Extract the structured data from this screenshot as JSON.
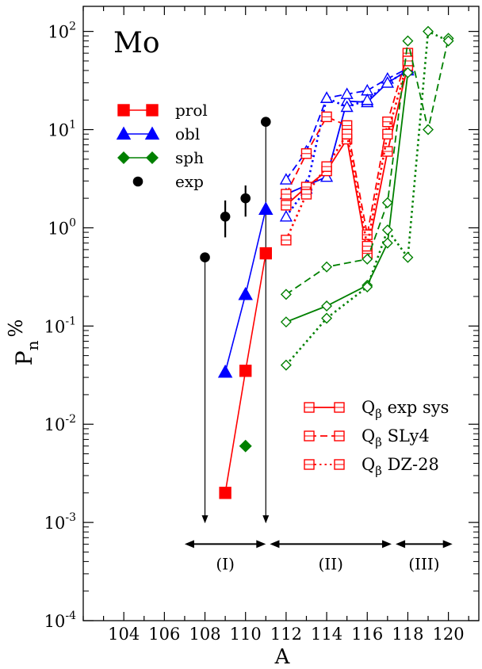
{
  "chart_data": {
    "type": "scatter",
    "title": "Mo",
    "xlabel": "A",
    "ylabel": "P",
    "ylabel_sub": "n",
    "ylabel_suffix": "%",
    "xlim": [
      102,
      121.5
    ],
    "ylim": [
      0.0001,
      180
    ],
    "yscale": "log",
    "xticks": [
      {
        "v": 104,
        "label": "104"
      },
      {
        "v": 106,
        "label": "106"
      },
      {
        "v": 108,
        "label": "108"
      },
      {
        "v": 110,
        "label": "110"
      },
      {
        "v": 112,
        "label": "112"
      },
      {
        "v": 114,
        "label": "114"
      },
      {
        "v": 116,
        "label": "116"
      },
      {
        "v": 118,
        "label": "118"
      },
      {
        "v": 120,
        "label": "120"
      }
    ],
    "yticks": [
      {
        "v": 0.0001,
        "base": "10",
        "exp": "-4"
      },
      {
        "v": 0.001,
        "base": "10",
        "exp": "-3"
      },
      {
        "v": 0.01,
        "base": "10",
        "exp": "-2"
      },
      {
        "v": 0.1,
        "base": "10",
        "exp": "-1"
      },
      {
        "v": 1,
        "base": "10",
        "exp": "0"
      },
      {
        "v": 10,
        "base": "10",
        "exp": "1"
      },
      {
        "v": 100,
        "base": "10",
        "exp": "2"
      }
    ],
    "colors": {
      "prol": "#ff0000",
      "obl": "#0000ff",
      "sph": "#008000",
      "exp": "#000000",
      "qbeta": "#ff0000"
    },
    "legend_top": [
      {
        "label": "prol",
        "color": "#ff0000",
        "marker": "square"
      },
      {
        "label": "obl",
        "color": "#0000ff",
        "marker": "triangle"
      },
      {
        "label": "sph",
        "color": "#008000",
        "marker": "diamond"
      },
      {
        "label": "exp",
        "color": "#000000",
        "marker": "circle"
      }
    ],
    "legend_bottom": [
      {
        "label": "Q",
        "sub": "β",
        "suffix": "exp sys",
        "dash": "solid"
      },
      {
        "label": "Q",
        "sub": "β",
        "suffix": "SLy4",
        "dash": "dashed"
      },
      {
        "label": "Q",
        "sub": "β",
        "suffix": "DZ-28",
        "dash": "dotted"
      }
    ],
    "series_filled": [
      {
        "name": "prol",
        "color": "#ff0000",
        "marker": "square",
        "x": [
          109,
          110,
          111
        ],
        "y": [
          0.002,
          0.035,
          0.55
        ]
      },
      {
        "name": "obl",
        "color": "#0000ff",
        "marker": "triangle",
        "x": [
          109,
          110,
          111
        ],
        "y": [
          0.034,
          0.21,
          1.55
        ]
      },
      {
        "name": "sph",
        "color": "#008000",
        "marker": "diamond",
        "x": [
          110
        ],
        "y": [
          0.006
        ]
      }
    ],
    "exp_points": [
      {
        "x": 108,
        "y": 0.5,
        "lo": 0.001,
        "hi": 0.5
      },
      {
        "x": 109,
        "y": 1.3,
        "lo": 0.8,
        "hi": 1.9
      },
      {
        "x": 110,
        "y": 2.0,
        "lo": 1.3,
        "hi": 2.7
      },
      {
        "x": 111,
        "y": 12.0,
        "lo": 0.001,
        "hi": 12.0
      }
    ],
    "series_open": [
      {
        "name": "obl exp sys",
        "color": "#0000ff",
        "marker": "triangle",
        "dash": "solid",
        "x": [
          112,
          113,
          114,
          115,
          116,
          117,
          118
        ],
        "y": [
          2.2,
          2.7,
          3.3,
          19.5,
          19.0,
          30.0,
          40.0
        ]
      },
      {
        "name": "obl SLy4",
        "color": "#0000ff",
        "marker": "triangle",
        "dash": "dashed",
        "x": [
          112,
          113,
          114,
          115,
          116,
          117,
          118
        ],
        "y": [
          3.1,
          6.0,
          21.0,
          23.0,
          25.0,
          33.0,
          42.0
        ]
      },
      {
        "name": "obl DZ-28",
        "color": "#0000ff",
        "marker": "triangle",
        "dash": "dotted",
        "x": [
          112,
          113,
          114,
          115,
          116,
          117,
          118
        ],
        "y": [
          1.3,
          2.5,
          21.0,
          17.0,
          20.0,
          30.0,
          40.0
        ]
      },
      {
        "name": "prol exp sys",
        "color": "#ff0000",
        "marker": "square",
        "dash": "solid",
        "x": [
          112,
          113,
          114,
          115,
          116,
          117,
          118
        ],
        "y": [
          1.7,
          2.6,
          3.8,
          8.0,
          0.55,
          6.0,
          45.0
        ]
      },
      {
        "name": "prol SLy4",
        "color": "#ff0000",
        "marker": "square",
        "dash": "dashed",
        "x": [
          112,
          113,
          114,
          115,
          116,
          117,
          118
        ],
        "y": [
          2.2,
          5.7,
          13.5,
          11.0,
          0.85,
          12.0,
          60.0
        ]
      },
      {
        "name": "prol DZ-28",
        "color": "#ff0000",
        "marker": "square",
        "dash": "dotted",
        "x": [
          112,
          113,
          114,
          115,
          116,
          117,
          118
        ],
        "y": [
          0.75,
          2.2,
          4.2,
          9.0,
          0.65,
          9.0,
          50.0
        ]
      },
      {
        "name": "sph exp sys",
        "color": "#008000",
        "marker": "diamond",
        "dash": "solid",
        "x": [
          112,
          114,
          116,
          117,
          118
        ],
        "y": [
          0.11,
          0.16,
          0.26,
          0.7,
          38.0
        ]
      },
      {
        "name": "sph SLy4",
        "color": "#008000",
        "marker": "diamond",
        "dash": "dashed",
        "x": [
          112,
          114,
          116,
          117,
          118,
          119,
          120
        ],
        "y": [
          0.21,
          0.4,
          0.48,
          1.8,
          80.0,
          10.0,
          85.0
        ]
      },
      {
        "name": "sph DZ-28",
        "color": "#008000",
        "marker": "diamond",
        "dash": "dotted",
        "x": [
          112,
          114,
          116,
          117,
          118,
          119,
          120
        ],
        "y": [
          0.04,
          0.12,
          0.25,
          0.95,
          0.5,
          100.0,
          80.0
        ]
      }
    ],
    "regions": [
      {
        "label": "(I)",
        "x1": 107,
        "x2": 111,
        "y": 0.0005
      },
      {
        "label": "(II)",
        "x1": 111.2,
        "x2": 117.2,
        "y": 0.0005
      },
      {
        "label": "(III)",
        "x1": 117.4,
        "x2": 120.2,
        "y": 0.0005
      }
    ]
  }
}
